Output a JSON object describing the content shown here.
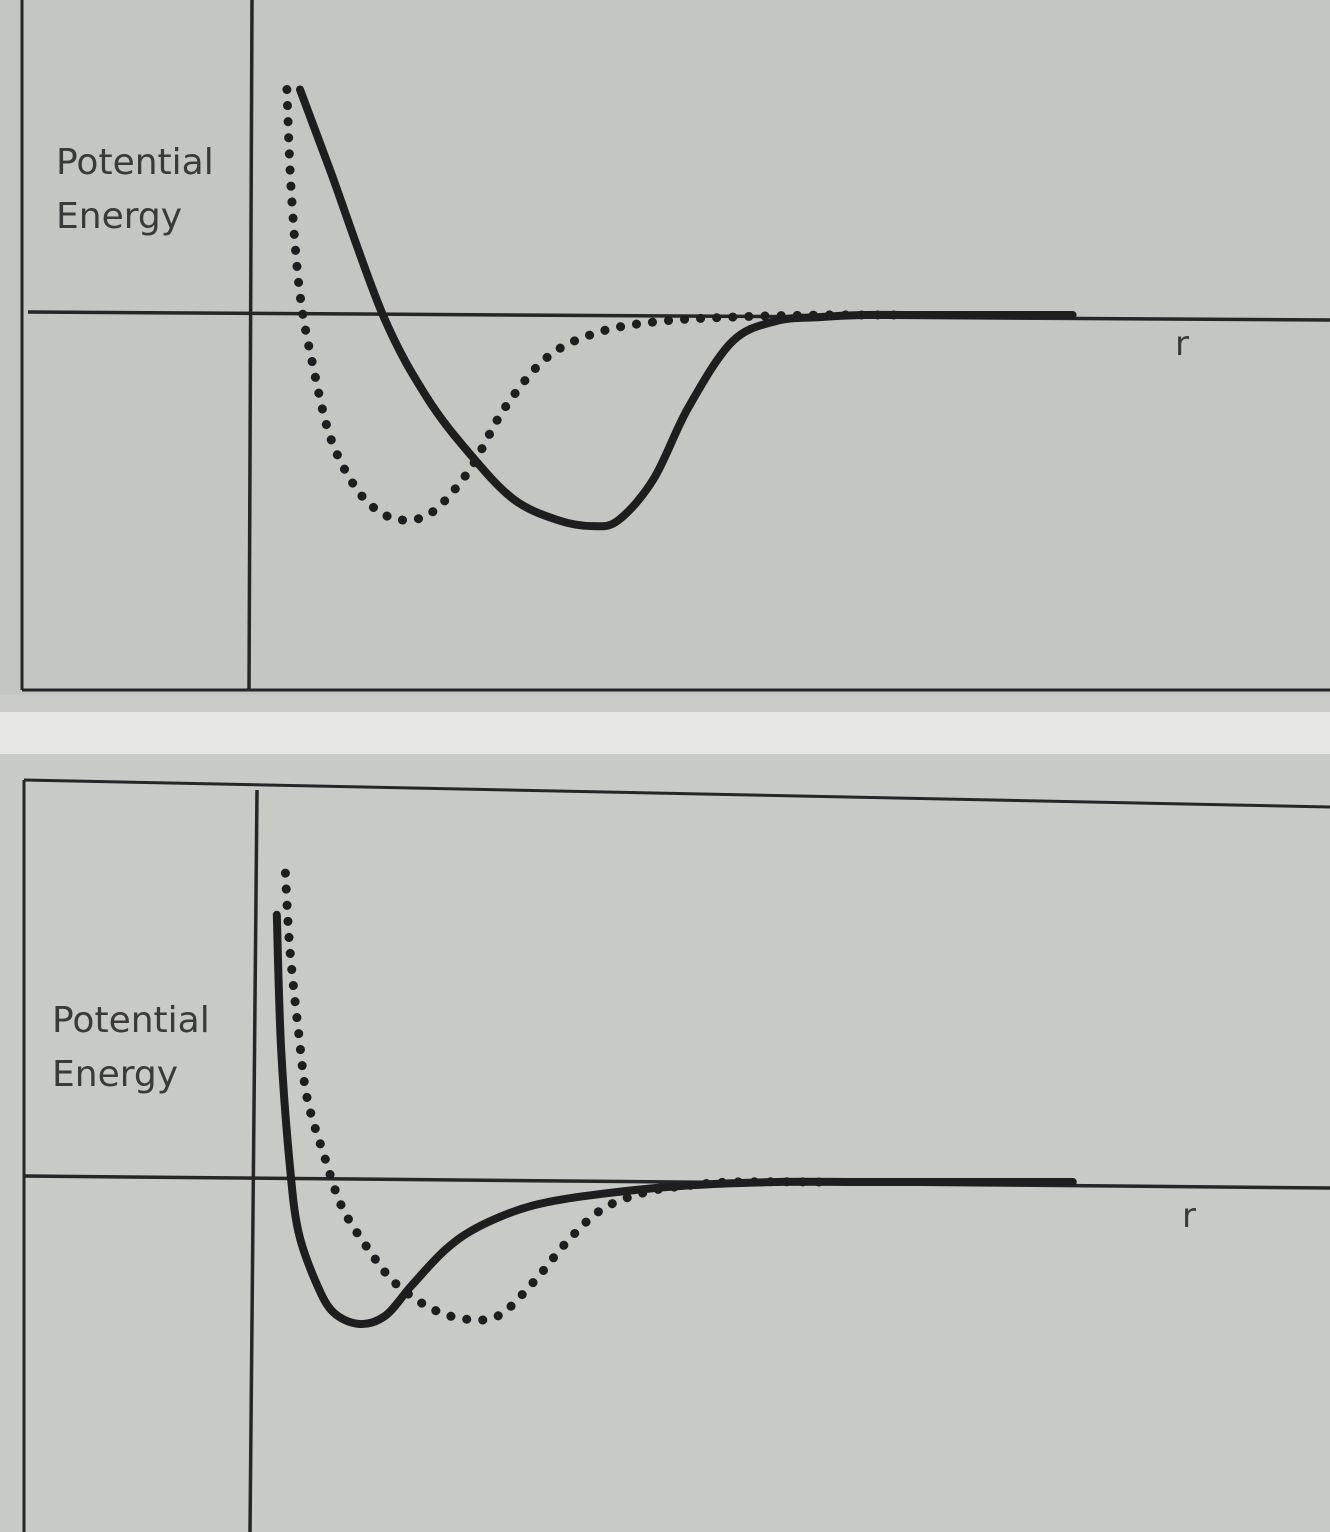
{
  "charts": [
    {
      "id": "top",
      "ylabel_line1": "Potential",
      "ylabel_line2": "Energy",
      "xlabel": "r"
    },
    {
      "id": "bottom",
      "ylabel_line1": "Potential",
      "ylabel_line2": "Energy",
      "xlabel": "r"
    }
  ],
  "chart_data": [
    {
      "type": "line",
      "xlabel": "r",
      "ylabel": "Potential Energy",
      "xlim": [
        0,
        10
      ],
      "ylim": [
        -1.1,
        1.2
      ],
      "grid": false,
      "series": [
        {
          "style": "solid",
          "x": [
            0.55,
            0.9,
            1.5,
            2.0,
            2.5,
            3.0,
            3.5,
            3.9,
            4.2,
            4.6,
            5.0,
            5.5,
            6.0,
            6.5,
            7.0,
            7.5,
            8.5,
            9.4
          ],
          "y": [
            1.1,
            0.7,
            0.0,
            -0.4,
            -0.68,
            -0.9,
            -1.0,
            -1.03,
            -1.0,
            -0.8,
            -0.45,
            -0.13,
            -0.03,
            -0.01,
            0,
            0,
            0,
            0
          ]
        },
        {
          "style": "dotted",
          "x": [
            0.4,
            0.45,
            0.55,
            0.7,
            0.9,
            1.2,
            1.5,
            1.8,
            2.1,
            2.5,
            2.9,
            3.4,
            4.0,
            4.7,
            5.5,
            6.5,
            7.0,
            7.5
          ],
          "y": [
            1.1,
            0.6,
            0.1,
            -0.25,
            -0.6,
            -0.85,
            -0.97,
            -1.0,
            -0.95,
            -0.75,
            -0.45,
            -0.2,
            -0.08,
            -0.03,
            -0.01,
            0,
            0,
            0
          ]
        }
      ]
    },
    {
      "type": "line",
      "xlabel": "r",
      "ylabel": "Potential Energy",
      "xlim": [
        0,
        10
      ],
      "ylim": [
        -0.9,
        1.9
      ],
      "grid": false,
      "series": [
        {
          "style": "solid",
          "x": [
            0.25,
            0.3,
            0.4,
            0.5,
            0.7,
            0.9,
            1.2,
            1.5,
            1.8,
            2.2,
            2.6,
            3.2,
            4.0,
            5.0,
            6.0,
            7.0,
            8.0,
            9.4
          ],
          "y": [
            1.6,
            0.8,
            0.1,
            -0.3,
            -0.6,
            -0.78,
            -0.85,
            -0.8,
            -0.62,
            -0.4,
            -0.26,
            -0.14,
            -0.07,
            -0.02,
            0,
            0,
            0,
            0
          ]
        },
        {
          "style": "dotted",
          "x": [
            0.35,
            0.4,
            0.5,
            0.6,
            0.8,
            1.0,
            1.3,
            1.6,
            2.0,
            2.4,
            2.8,
            3.2,
            3.6,
            4.0,
            4.5,
            5.0,
            5.5,
            6.5
          ],
          "y": [
            1.85,
            1.4,
            0.9,
            0.5,
            0.15,
            -0.15,
            -0.4,
            -0.6,
            -0.75,
            -0.82,
            -0.8,
            -0.6,
            -0.35,
            -0.16,
            -0.06,
            -0.02,
            0,
            0
          ]
        }
      ]
    }
  ]
}
